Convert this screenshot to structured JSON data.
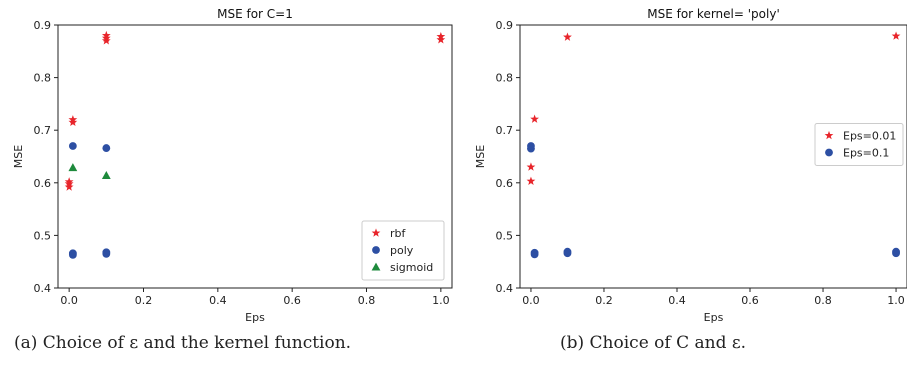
{
  "chart_data": [
    {
      "type": "scatter",
      "title": "MSE for C=1",
      "xlabel": "Eps",
      "ylabel": "MSE",
      "xlim": [
        -0.03,
        1.03
      ],
      "ylim": [
        0.4,
        0.9
      ],
      "xticks": [
        "0.0",
        "0.2",
        "0.4",
        "0.6",
        "0.8",
        "1.0"
      ],
      "yticks": [
        "0.4",
        "0.5",
        "0.6",
        "0.7",
        "0.8",
        "0.9"
      ],
      "legend_position": "lower-right",
      "series": [
        {
          "name": "rbf",
          "marker": "star",
          "color": "#e8252b",
          "x": [
            0,
            0,
            0,
            0.01,
            0.01,
            0.1,
            0.1,
            0.1,
            1,
            1
          ],
          "y": [
            0.592,
            0.598,
            0.602,
            0.715,
            0.72,
            0.87,
            0.875,
            0.88,
            0.872,
            0.878
          ]
        },
        {
          "name": "poly",
          "marker": "circle",
          "color": "#2d4fa3",
          "x": [
            0.01,
            0.01,
            0.01,
            0.1,
            0.1,
            0.1
          ],
          "y": [
            0.463,
            0.466,
            0.67,
            0.465,
            0.468,
            0.666
          ]
        },
        {
          "name": "sigmoid",
          "marker": "triangle",
          "color": "#1e8a3c",
          "x": [
            0.01,
            0.1
          ],
          "y": [
            0.629,
            0.614
          ]
        }
      ]
    },
    {
      "type": "scatter",
      "title": "MSE for kernel= 'poly'",
      "xlabel": "Eps",
      "ylabel": "MSE",
      "xlim": [
        -0.03,
        1.03
      ],
      "ylim": [
        0.4,
        0.9
      ],
      "xticks": [
        "0.0",
        "0.2",
        "0.4",
        "0.6",
        "0.8",
        "1.0"
      ],
      "yticks": [
        "0.4",
        "0.5",
        "0.6",
        "0.7",
        "0.8",
        "0.9"
      ],
      "legend_position": "center-right",
      "series": [
        {
          "name": "Eps=0.01",
          "marker": "star",
          "color": "#e8252b",
          "x": [
            0,
            0,
            0.01,
            0.1,
            1
          ],
          "y": [
            0.603,
            0.63,
            0.721,
            0.877,
            0.879
          ]
        },
        {
          "name": "Eps=0.1",
          "marker": "circle",
          "color": "#2d4fa3",
          "x": [
            0,
            0,
            0.01,
            0.01,
            0.1,
            0.1,
            1,
            1
          ],
          "y": [
            0.665,
            0.67,
            0.464,
            0.467,
            0.466,
            0.469,
            0.466,
            0.469
          ]
        }
      ]
    }
  ],
  "captions": [
    "(a) Choice of ε and the kernel function.",
    "(b) Choice of C and ε."
  ]
}
